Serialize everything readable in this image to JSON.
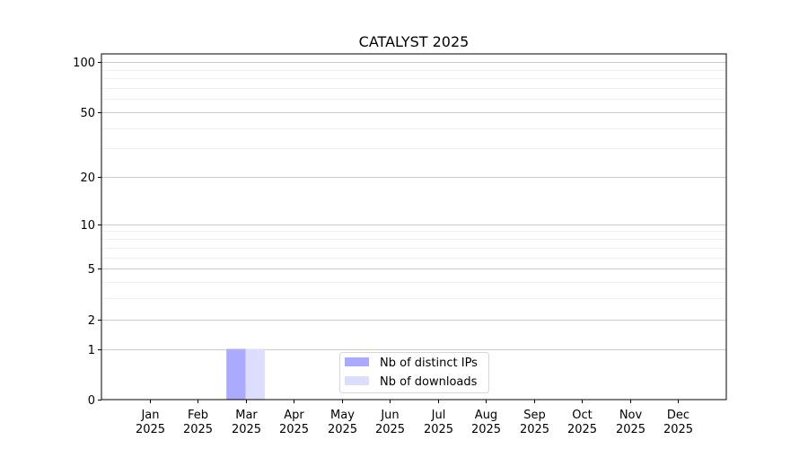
{
  "chart_data": {
    "type": "bar",
    "title": "CATALYST 2025",
    "xlabel": "",
    "ylabel": "",
    "yscale": "log(1+y)",
    "ylim": [
      0,
      112
    ],
    "grid": "horizontal major and minor",
    "legend_placement": "lower-center",
    "categories": [
      "Jan\n2025",
      "Feb\n2025",
      "Mar\n2025",
      "Apr\n2025",
      "May\n2025",
      "Jun\n2025",
      "Jul\n2025",
      "Aug\n2025",
      "Sep\n2025",
      "Oct\n2025",
      "Nov\n2025",
      "Dec\n2025"
    ],
    "xtick_labels": [
      [
        "Jan",
        "2025"
      ],
      [
        "Feb",
        "2025"
      ],
      [
        "Mar",
        "2025"
      ],
      [
        "Apr",
        "2025"
      ],
      [
        "May",
        "2025"
      ],
      [
        "Jun",
        "2025"
      ],
      [
        "Jul",
        "2025"
      ],
      [
        "Aug",
        "2025"
      ],
      [
        "Sep",
        "2025"
      ],
      [
        "Oct",
        "2025"
      ],
      [
        "Nov",
        "2025"
      ],
      [
        "Dec",
        "2025"
      ]
    ],
    "yticks": [
      0,
      1,
      2,
      5,
      10,
      20,
      50,
      100
    ],
    "ytick_labels": [
      "0",
      "1",
      "2",
      "5",
      "10",
      "20",
      "50",
      "100"
    ],
    "minor_yticks": [
      3,
      4,
      6,
      7,
      8,
      9,
      30,
      40,
      60,
      70,
      80,
      90
    ],
    "series": [
      {
        "name": "Nb of distinct IPs",
        "color": "#aaaaff",
        "values": [
          0,
          0,
          1,
          0,
          0,
          0,
          0,
          0,
          0,
          0,
          0,
          0
        ]
      },
      {
        "name": "Nb of downloads",
        "color": "#ddddff",
        "values": [
          0,
          0,
          1,
          0,
          0,
          0,
          0,
          0,
          0,
          0,
          0,
          0
        ]
      }
    ]
  }
}
